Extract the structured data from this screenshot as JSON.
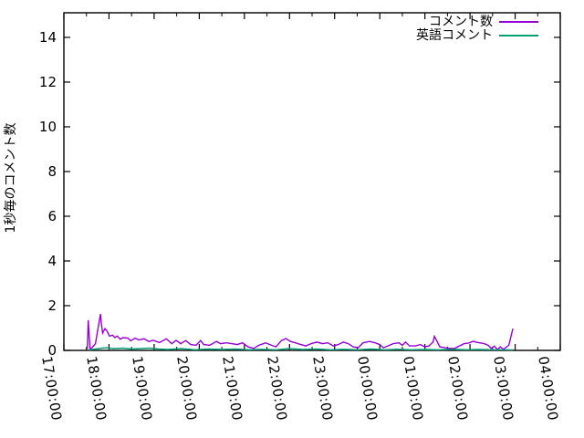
{
  "background_color": "#ffffff",
  "axis_color": "#000000",
  "chart_data": {
    "type": "line",
    "title": "",
    "xlabel": "",
    "ylabel": "1秒毎のコメント数",
    "grid": false,
    "legend_position": "top-right",
    "x_axis": {
      "unit": "time-of-day",
      "range_hours_from_first_tick": [
        0,
        11
      ],
      "major_tick_labels": [
        "17:00:00",
        "18:00:00",
        "19:00:00",
        "20:00:00",
        "21:00:00",
        "22:00:00",
        "23:00:00",
        "00:00:00",
        "01:00:00",
        "02:00:00",
        "03:00:00",
        "04:00:00"
      ],
      "major_tick_hours": [
        0,
        1,
        2,
        3,
        4,
        5,
        6,
        7,
        8,
        9,
        10,
        11
      ],
      "minor_tick_hours": [
        0.5,
        1.5,
        2.5,
        3.5,
        4.5,
        5.5,
        6.5,
        7.5,
        8.5,
        9.5,
        10.5
      ]
    },
    "y_axis": {
      "ticks": [
        0,
        2,
        4,
        6,
        8,
        10,
        12,
        14
      ],
      "ylim": [
        0,
        15.1
      ]
    },
    "series": [
      {
        "name": "コメント数",
        "color": "#9400d3",
        "points": [
          [
            0.52,
            0.06
          ],
          [
            0.54,
            1.35
          ],
          [
            0.58,
            0.04
          ],
          [
            0.64,
            0.16
          ],
          [
            0.7,
            0.3
          ],
          [
            0.81,
            1.63
          ],
          [
            0.83,
            1.22
          ],
          [
            0.86,
            0.78
          ],
          [
            0.91,
            0.97
          ],
          [
            0.95,
            0.89
          ],
          [
            1.01,
            0.64
          ],
          [
            1.08,
            0.68
          ],
          [
            1.13,
            0.57
          ],
          [
            1.18,
            0.64
          ],
          [
            1.25,
            0.5
          ],
          [
            1.31,
            0.57
          ],
          [
            1.42,
            0.55
          ],
          [
            1.48,
            0.43
          ],
          [
            1.58,
            0.55
          ],
          [
            1.66,
            0.47
          ],
          [
            1.78,
            0.52
          ],
          [
            1.88,
            0.4
          ],
          [
            1.98,
            0.45
          ],
          [
            2.12,
            0.35
          ],
          [
            2.27,
            0.52
          ],
          [
            2.39,
            0.3
          ],
          [
            2.49,
            0.45
          ],
          [
            2.59,
            0.3
          ],
          [
            2.7,
            0.44
          ],
          [
            2.81,
            0.26
          ],
          [
            2.93,
            0.23
          ],
          [
            3.03,
            0.44
          ],
          [
            3.1,
            0.26
          ],
          [
            3.23,
            0.23
          ],
          [
            3.38,
            0.4
          ],
          [
            3.47,
            0.3
          ],
          [
            3.6,
            0.34
          ],
          [
            3.72,
            0.3
          ],
          [
            3.84,
            0.26
          ],
          [
            3.96,
            0.34
          ],
          [
            4.08,
            0.16
          ],
          [
            4.21,
            0.09
          ],
          [
            4.32,
            0.23
          ],
          [
            4.47,
            0.34
          ],
          [
            4.6,
            0.23
          ],
          [
            4.7,
            0.16
          ],
          [
            4.82,
            0.44
          ],
          [
            4.92,
            0.53
          ],
          [
            5.02,
            0.4
          ],
          [
            5.13,
            0.34
          ],
          [
            5.25,
            0.26
          ],
          [
            5.36,
            0.2
          ],
          [
            5.48,
            0.3
          ],
          [
            5.61,
            0.37
          ],
          [
            5.73,
            0.3
          ],
          [
            5.85,
            0.34
          ],
          [
            5.97,
            0.2
          ],
          [
            6.08,
            0.26
          ],
          [
            6.19,
            0.37
          ],
          [
            6.3,
            0.3
          ],
          [
            6.41,
            0.16
          ],
          [
            6.52,
            0.12
          ],
          [
            6.63,
            0.34
          ],
          [
            6.77,
            0.4
          ],
          [
            6.9,
            0.34
          ],
          [
            7.0,
            0.26
          ],
          [
            7.08,
            0.12
          ],
          [
            7.18,
            0.2
          ],
          [
            7.3,
            0.3
          ],
          [
            7.43,
            0.34
          ],
          [
            7.5,
            0.23
          ],
          [
            7.57,
            0.37
          ],
          [
            7.66,
            0.2
          ],
          [
            7.79,
            0.2
          ],
          [
            7.9,
            0.26
          ],
          [
            8.0,
            0.16
          ],
          [
            8.09,
            0.2
          ],
          [
            8.18,
            0.37
          ],
          [
            8.21,
            0.63
          ],
          [
            8.26,
            0.44
          ],
          [
            8.33,
            0.16
          ],
          [
            8.45,
            0.12
          ],
          [
            8.56,
            0.09
          ],
          [
            8.66,
            0.09
          ],
          [
            8.76,
            0.19
          ],
          [
            8.87,
            0.3
          ],
          [
            8.97,
            0.33
          ],
          [
            9.07,
            0.41
          ],
          [
            9.13,
            0.37
          ],
          [
            9.24,
            0.33
          ],
          [
            9.31,
            0.3
          ],
          [
            9.4,
            0.23
          ],
          [
            9.47,
            0.09
          ],
          [
            9.54,
            0.19
          ],
          [
            9.61,
            0.03
          ],
          [
            9.67,
            0.16
          ],
          [
            9.74,
            0.05
          ],
          [
            9.86,
            0.23
          ],
          [
            9.95,
            0.98
          ]
        ]
      },
      {
        "name": "英語コメント",
        "color": "#009e73",
        "points": [
          [
            0.55,
            0.02
          ],
          [
            0.7,
            0.06
          ],
          [
            0.85,
            0.1
          ],
          [
            0.95,
            0.12
          ],
          [
            1.1,
            0.08
          ],
          [
            1.3,
            0.1
          ],
          [
            1.5,
            0.06
          ],
          [
            1.7,
            0.08
          ],
          [
            1.9,
            0.1
          ],
          [
            2.1,
            0.06
          ],
          [
            2.3,
            0.04
          ],
          [
            2.6,
            0.08
          ],
          [
            2.9,
            0.03
          ],
          [
            3.2,
            0.06
          ],
          [
            3.5,
            0.04
          ],
          [
            3.8,
            0.06
          ],
          [
            4.1,
            0.03
          ],
          [
            4.4,
            0.05
          ],
          [
            4.7,
            0.03
          ],
          [
            5.0,
            0.08
          ],
          [
            5.3,
            0.04
          ],
          [
            5.6,
            0.06
          ],
          [
            5.9,
            0.03
          ],
          [
            6.2,
            0.05
          ],
          [
            6.5,
            0.03
          ],
          [
            6.8,
            0.06
          ],
          [
            7.1,
            0.03
          ],
          [
            7.4,
            0.05
          ],
          [
            7.7,
            0.03
          ],
          [
            8.0,
            0.04
          ],
          [
            8.3,
            0.03
          ],
          [
            8.6,
            0.05
          ],
          [
            8.9,
            0.03
          ],
          [
            9.2,
            0.04
          ],
          [
            9.5,
            0.03
          ],
          [
            9.8,
            0.03
          ],
          [
            9.95,
            0.02
          ]
        ]
      }
    ]
  },
  "legend": {
    "items": [
      {
        "label": "コメント数"
      },
      {
        "label": "英語コメント"
      }
    ]
  }
}
